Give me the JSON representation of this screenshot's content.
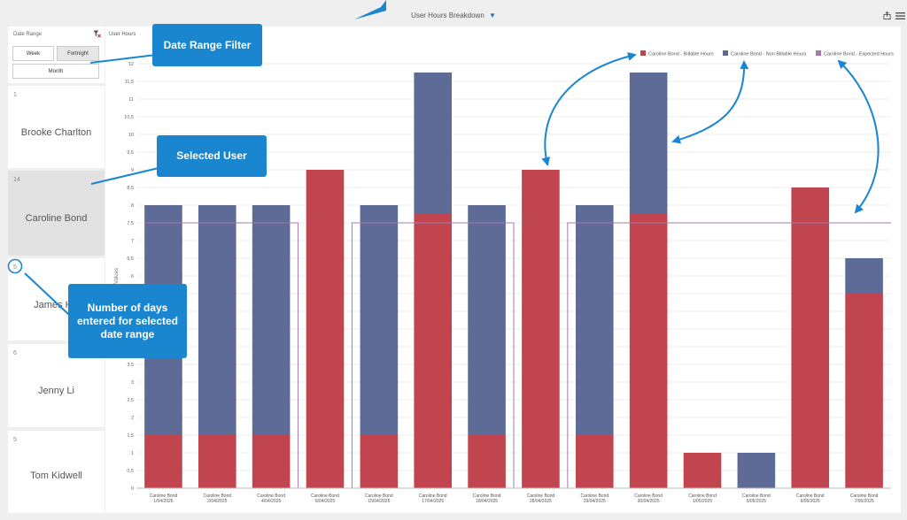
{
  "header": {
    "title": "User Hours Breakdown"
  },
  "date_filter": {
    "title": "Date Range",
    "buttons": [
      "Week",
      "Fortnight",
      "Month"
    ],
    "selected": "Fortnight"
  },
  "users": [
    {
      "count": "1",
      "name": "Brooke Charlton",
      "selected": false
    },
    {
      "count": "14",
      "name": "Caroline Bond",
      "selected": true
    },
    {
      "count": "5",
      "name": "James Hill",
      "selected": false
    },
    {
      "count": "6",
      "name": "Jenny Li",
      "selected": false
    },
    {
      "count": "5",
      "name": "Tom Kidwell",
      "selected": false
    }
  ],
  "chart_panel": {
    "title": "User Hours"
  },
  "chart_data": {
    "type": "bar",
    "stacked": true,
    "ylabel": "Values",
    "ylim": [
      0,
      12
    ],
    "ystep": 0.5,
    "grid": true,
    "legend_position": "top-right",
    "categories": [
      [
        "Caroline Bond",
        "1/04/2025"
      ],
      [
        "Caroline Bond",
        "2/04/2025"
      ],
      [
        "Caroline Bond",
        "4/04/2025"
      ],
      [
        "Caroline Bond",
        "6/04/2025"
      ],
      [
        "Caroline Bond",
        "15/04/2025"
      ],
      [
        "Caroline Bond",
        "17/04/2025"
      ],
      [
        "Caroline Bond",
        "18/04/2025"
      ],
      [
        "Caroline Bond",
        "28/04/2025"
      ],
      [
        "Caroline Bond",
        "29/04/2025"
      ],
      [
        "Caroline Bond",
        "30/04/2025"
      ],
      [
        "Caroline Bond",
        "1/05/2025"
      ],
      [
        "Caroline Bond",
        "5/05/2025"
      ],
      [
        "Caroline Bond",
        "6/05/2025"
      ],
      [
        "Caroline Bond",
        "7/05/2025"
      ]
    ],
    "series": [
      {
        "name": "Caroline Bond - Billable Hours",
        "kind": "bar",
        "color": "#c0454e",
        "values": [
          1.5,
          1.5,
          1.5,
          9,
          1.5,
          7.75,
          1.5,
          9,
          1.5,
          7.75,
          1,
          0,
          8.5,
          5.5
        ]
      },
      {
        "name": "Caroline Bond - Non Billable Hours",
        "kind": "bar",
        "color": "#5d6b96",
        "values": [
          6.5,
          6.5,
          6.5,
          0,
          6.5,
          4,
          6.5,
          0,
          6.5,
          4,
          0,
          1,
          0,
          1
        ]
      },
      {
        "name": "Caroline Bond - Expected Hours",
        "kind": "line",
        "color": "#a57aae",
        "values": [
          7.5,
          7.5,
          7.5,
          0,
          7.5,
          7.5,
          7.5,
          0,
          7.5,
          7.5,
          7.5,
          7.5,
          7.5,
          7.5
        ]
      }
    ]
  },
  "callouts": {
    "date_range": "Date Range Filter",
    "selected_user": "Selected User",
    "days_entered": "Number of days entered for selected date range"
  },
  "colors": {
    "callout": "#1a86d0",
    "billable": "#c0454e",
    "non_billable": "#5d6b96",
    "expected": "#a57aae"
  },
  "icons": {
    "filter": "filter-icon",
    "export": "export-icon",
    "menu": "hamburger-menu-icon",
    "clear_filter": "clear-filter-icon"
  }
}
